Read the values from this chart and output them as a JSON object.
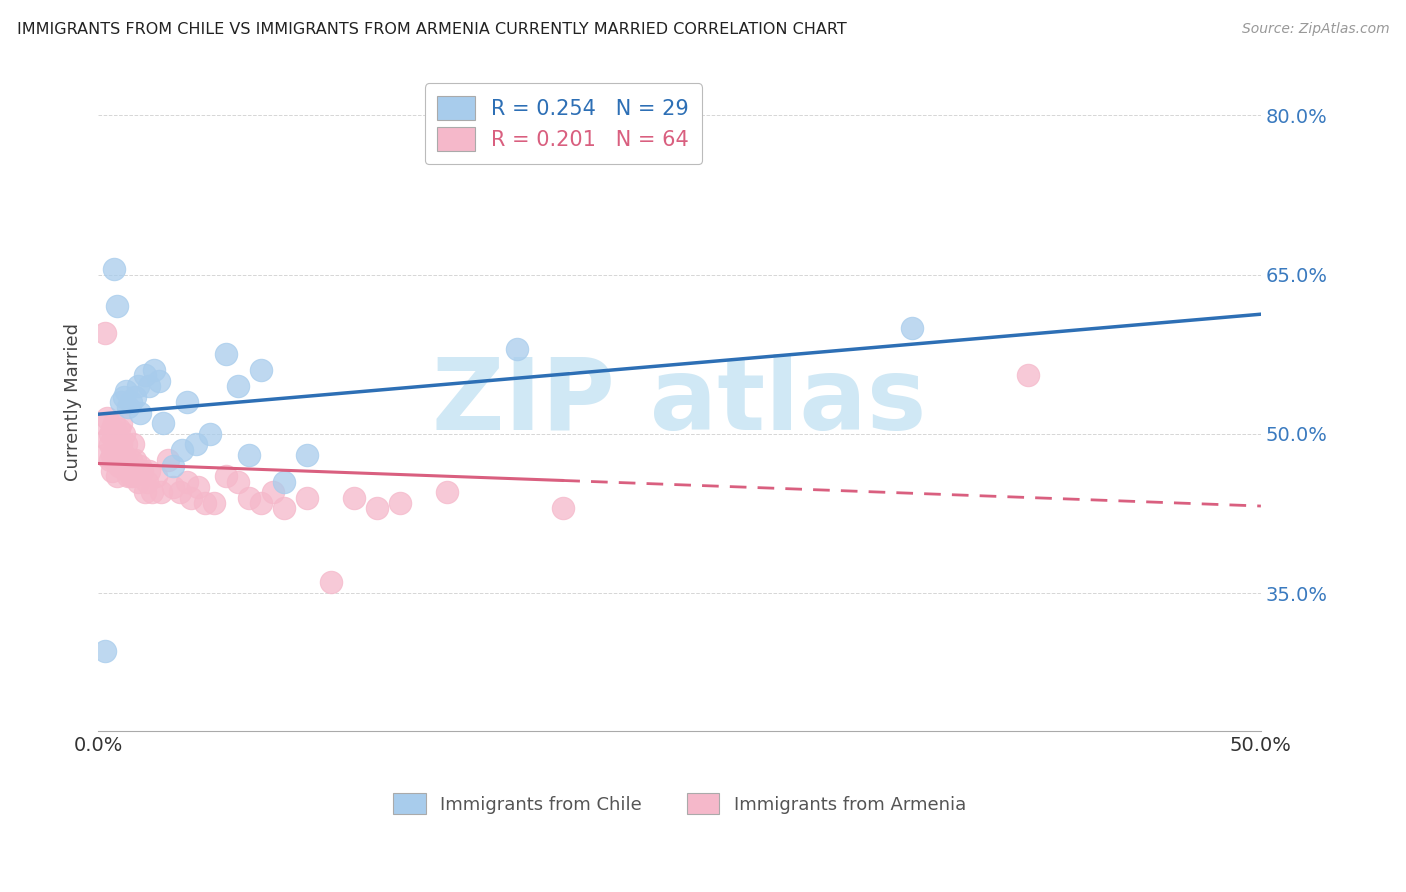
{
  "title": "IMMIGRANTS FROM CHILE VS IMMIGRANTS FROM ARMENIA CURRENTLY MARRIED CORRELATION CHART",
  "source": "Source: ZipAtlas.com",
  "ylabel": "Currently Married",
  "legend_label1": "Immigrants from Chile",
  "legend_label2": "Immigrants from Armenia",
  "r1": 0.254,
  "n1": 29,
  "r2": 0.201,
  "n2": 64,
  "color_chile": "#a8ccec",
  "color_armenia": "#f5b8ca",
  "color_line_chile": "#2d6fb5",
  "color_line_armenia": "#d95f7f",
  "xlim": [
    0.0,
    0.5
  ],
  "ylim": [
    0.22,
    0.84
  ],
  "right_yticks": [
    0.35,
    0.5,
    0.65,
    0.8
  ],
  "right_yticklabels": [
    "35.0%",
    "50.0%",
    "65.0%",
    "80.0%"
  ],
  "xticks": [
    0.0,
    0.1,
    0.2,
    0.3,
    0.4,
    0.5
  ],
  "xticklabels": [
    "0.0%",
    "",
    "",
    "",
    "",
    "50.0%"
  ],
  "chile_x": [
    0.003,
    0.007,
    0.008,
    0.01,
    0.011,
    0.012,
    0.013,
    0.014,
    0.016,
    0.017,
    0.018,
    0.02,
    0.022,
    0.024,
    0.026,
    0.028,
    0.032,
    0.036,
    0.038,
    0.042,
    0.048,
    0.055,
    0.06,
    0.065,
    0.07,
    0.08,
    0.09,
    0.18,
    0.35
  ],
  "chile_y": [
    0.295,
    0.655,
    0.62,
    0.53,
    0.535,
    0.54,
    0.525,
    0.53,
    0.535,
    0.545,
    0.52,
    0.555,
    0.545,
    0.56,
    0.55,
    0.51,
    0.47,
    0.485,
    0.53,
    0.49,
    0.5,
    0.575,
    0.545,
    0.48,
    0.56,
    0.455,
    0.48,
    0.58,
    0.6
  ],
  "armenia_x": [
    0.002,
    0.003,
    0.003,
    0.004,
    0.004,
    0.005,
    0.005,
    0.005,
    0.006,
    0.006,
    0.006,
    0.007,
    0.007,
    0.007,
    0.008,
    0.008,
    0.008,
    0.009,
    0.009,
    0.009,
    0.01,
    0.01,
    0.01,
    0.011,
    0.011,
    0.012,
    0.012,
    0.013,
    0.014,
    0.014,
    0.015,
    0.015,
    0.016,
    0.017,
    0.018,
    0.019,
    0.02,
    0.021,
    0.022,
    0.023,
    0.025,
    0.027,
    0.03,
    0.032,
    0.035,
    0.038,
    0.04,
    0.043,
    0.046,
    0.05,
    0.055,
    0.06,
    0.065,
    0.07,
    0.075,
    0.08,
    0.09,
    0.1,
    0.11,
    0.12,
    0.13,
    0.15,
    0.2,
    0.4
  ],
  "armenia_y": [
    0.51,
    0.595,
    0.48,
    0.495,
    0.515,
    0.5,
    0.49,
    0.475,
    0.505,
    0.48,
    0.465,
    0.51,
    0.495,
    0.475,
    0.5,
    0.475,
    0.46,
    0.505,
    0.49,
    0.47,
    0.51,
    0.49,
    0.47,
    0.5,
    0.48,
    0.49,
    0.475,
    0.46,
    0.475,
    0.46,
    0.49,
    0.46,
    0.475,
    0.455,
    0.47,
    0.465,
    0.445,
    0.455,
    0.465,
    0.445,
    0.46,
    0.445,
    0.475,
    0.45,
    0.445,
    0.455,
    0.44,
    0.45,
    0.435,
    0.435,
    0.46,
    0.455,
    0.44,
    0.435,
    0.445,
    0.43,
    0.44,
    0.36,
    0.44,
    0.43,
    0.435,
    0.445,
    0.43,
    0.555
  ],
  "watermark_text": "ZIP atlas",
  "watermark_color": "#d0e8f5",
  "background_color": "#ffffff",
  "grid_color": "#cccccc"
}
